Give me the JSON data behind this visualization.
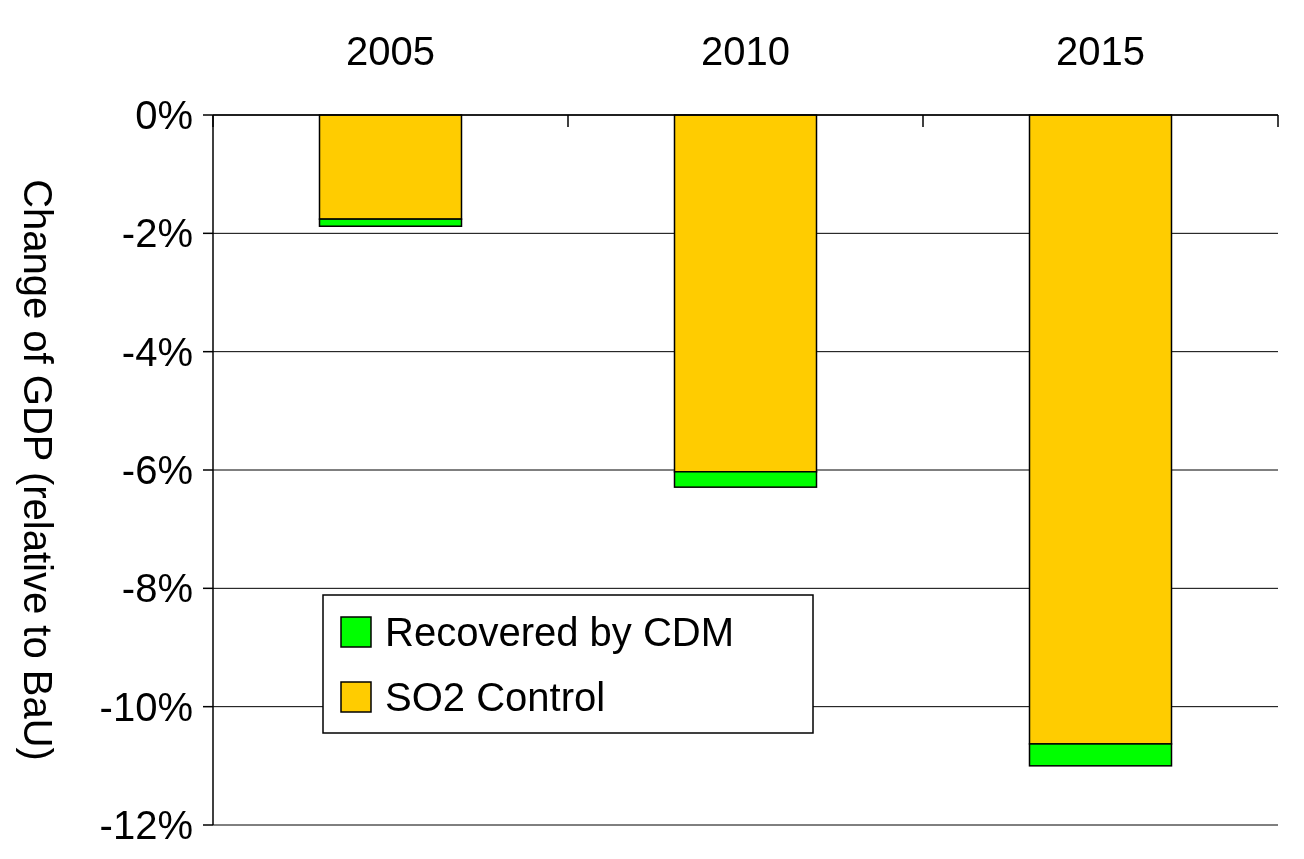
{
  "chart_data": {
    "type": "bar",
    "ylabel": "Change of GDP (relative to BaU)",
    "categories": [
      "2005",
      "2010",
      "2015"
    ],
    "stacked": true,
    "series": [
      {
        "name": "SO2 Control",
        "color": "#ffcc00",
        "values": [
          -1.76,
          -6.03,
          -10.63
        ]
      },
      {
        "name": "Recovered by CDM",
        "color": "#00ff00",
        "values": [
          -0.12,
          -0.26,
          -0.37
        ]
      }
    ],
    "ylim": [
      -12,
      0
    ],
    "yticks": [
      {
        "value": -12,
        "label": "-12%"
      },
      {
        "value": -10,
        "label": "-10%"
      },
      {
        "value": -8,
        "label": "-8%"
      },
      {
        "value": -6,
        "label": "-6%"
      },
      {
        "value": -4,
        "label": "-4%"
      },
      {
        "value": -2,
        "label": "-2%"
      },
      {
        "value": 0,
        "label": "0%"
      }
    ],
    "grid": "y",
    "legend": "bottom left"
  }
}
